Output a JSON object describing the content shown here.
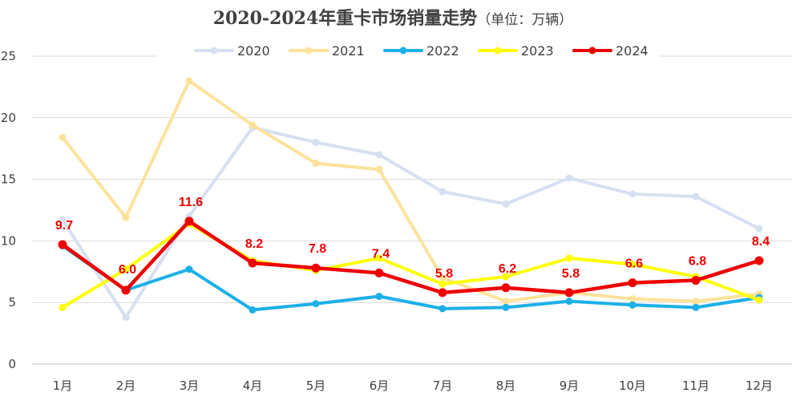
{
  "chart_data": {
    "type": "line",
    "title": "2020-2024年重卡市场销量走势",
    "subtitle": "（单位：万辆）",
    "categories": [
      "1月",
      "2月",
      "3月",
      "4月",
      "5月",
      "6月",
      "7月",
      "8月",
      "9月",
      "10月",
      "11月",
      "12月"
    ],
    "ylim": [
      0,
      25
    ],
    "yticks": [
      "0",
      "5",
      "10",
      "15",
      "20",
      "25"
    ],
    "grid": true,
    "legend_position": "top",
    "series": [
      {
        "name": "2020",
        "color": "#d6e0f1",
        "values": [
          11.7,
          3.8,
          12.0,
          19.2,
          18.0,
          17.0,
          14.0,
          13.0,
          15.1,
          13.8,
          13.6,
          11.0
        ]
      },
      {
        "name": "2021",
        "color": "#fde29a",
        "values": [
          18.4,
          11.9,
          23.0,
          19.4,
          16.3,
          15.8,
          7.0,
          5.1,
          5.8,
          5.3,
          5.1,
          5.7
        ]
      },
      {
        "name": "2022",
        "color": "#1cb0e8",
        "values": [
          9.6,
          6.0,
          7.7,
          4.4,
          4.9,
          5.5,
          4.5,
          4.6,
          5.1,
          4.8,
          4.6,
          5.4
        ]
      },
      {
        "name": "2023",
        "color": "#ffff00",
        "values": [
          4.6,
          7.7,
          11.4,
          8.4,
          7.6,
          8.6,
          6.5,
          7.1,
          8.6,
          8.1,
          7.1,
          5.2
        ]
      },
      {
        "name": "2024",
        "color": "#ee0000",
        "values": [
          9.7,
          6.0,
          11.6,
          8.2,
          7.8,
          7.4,
          5.8,
          6.2,
          5.8,
          6.6,
          6.8,
          8.4
        ],
        "data_labels": [
          "9.7",
          "6.0",
          "11.6",
          "8.2",
          "7.8",
          "7.4",
          "5.8",
          "6.2",
          "5.8",
          "6.6",
          "6.8",
          "8.4"
        ]
      }
    ]
  }
}
